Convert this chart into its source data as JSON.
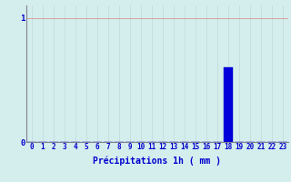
{
  "title": "",
  "xlabel": "Précipitations 1h ( mm )",
  "hours": [
    0,
    1,
    2,
    3,
    4,
    5,
    6,
    7,
    8,
    9,
    10,
    11,
    12,
    13,
    14,
    15,
    16,
    17,
    18,
    19,
    20,
    21,
    22,
    23
  ],
  "values": [
    0,
    0,
    0,
    0,
    0,
    0,
    0,
    0,
    0,
    0,
    0,
    0,
    0,
    0,
    0,
    0,
    0,
    0,
    0.6,
    0,
    0,
    0,
    0,
    0
  ],
  "bar_color": "#0000dd",
  "bar_edge_color": "#0000bb",
  "background_color": "#d4eeee",
  "grid_color_v": "#c0d8d8",
  "grid_color_h": "#e08080",
  "text_color": "#0000cc",
  "ytick_labels": [
    "0",
    "1"
  ],
  "ytick_values": [
    0,
    1
  ],
  "ylim": [
    0,
    1.1
  ],
  "xlim": [
    -0.5,
    23.5
  ],
  "xlabel_fontsize": 7,
  "tick_fontsize": 5.5
}
